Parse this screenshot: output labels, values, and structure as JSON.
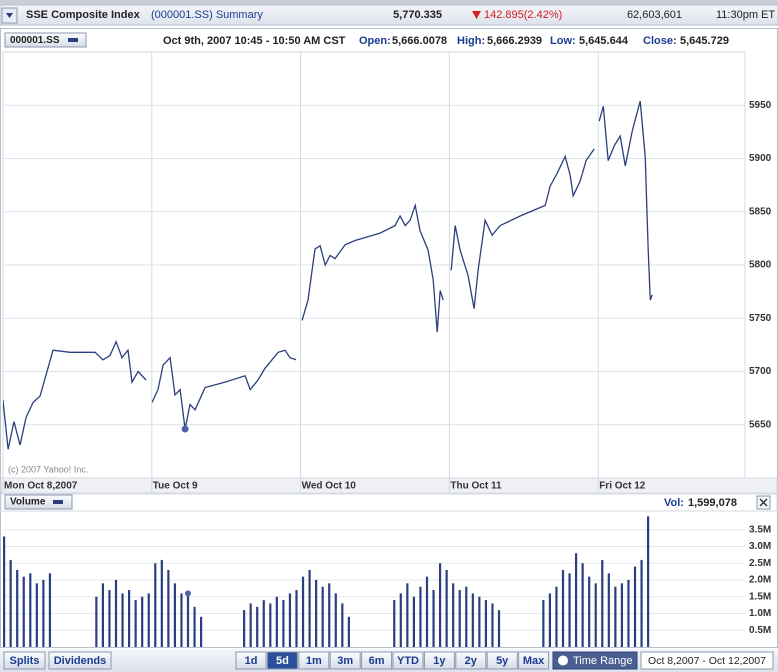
{
  "header": {
    "name": "SSE Composite Index",
    "symbol_link": "(000001.SS) Summary",
    "last_trade": "5,770.335",
    "change": "142.895(2.42%)",
    "volume": "62,603,601",
    "time": "11:30pm ET"
  },
  "info": {
    "symbol": "000001.SS",
    "period": "Oct 9th, 2007 10:45 - 10:50 AM CST",
    "open_label": "Open:",
    "open": "5,666.0078",
    "high_label": "High:",
    "high": "5,666.2939",
    "low_label": "Low:",
    "low": "5,645.644",
    "close_label": "Close:",
    "close": "5,645.729"
  },
  "chart_data": [
    {
      "type": "line",
      "color": "#2b3f7f",
      "grid": true,
      "annotation": "(c) 2007 Yahoo! Inc.",
      "xlim": [
        0,
        5
      ],
      "ylim": [
        5600,
        6000
      ],
      "xticks": [
        {
          "value": 0,
          "label": "Mon Oct 8,2007"
        },
        {
          "value": 1,
          "label": "Tue Oct 9"
        },
        {
          "value": 2,
          "label": "Wed Oct 10"
        },
        {
          "value": 3,
          "label": "Thu Oct 11"
        },
        {
          "value": 4,
          "label": "Fri Oct 12"
        }
      ],
      "yticks": [
        5650,
        5700,
        5750,
        5800,
        5850,
        5900,
        5950
      ],
      "x": [
        0,
        0.034,
        0.074,
        0.114,
        0.155,
        0.202,
        0.249,
        0.296,
        0.336,
        0.45,
        0.618,
        0.672,
        0.719,
        0.76,
        0.8,
        0.84,
        0.867,
        0.908,
        0.961,
        null,
        1.002,
        1.042,
        1.076,
        1.123,
        1.156,
        1.19,
        1.224,
        1.257,
        1.291,
        1.358,
        1.492,
        1.627,
        1.661,
        1.714,
        1.761,
        1.808,
        1.849,
        1.896,
        1.929,
        1.97,
        null,
        2.01,
        2.05,
        2.097,
        2.131,
        2.165,
        2.198,
        2.232,
        2.299,
        2.366,
        2.534,
        2.635,
        2.669,
        2.703,
        2.736,
        2.77,
        2.803,
        2.857,
        2.891,
        2.918,
        2.938,
        2.958,
        null,
        3.012,
        3.039,
        3.072,
        3.126,
        3.166,
        3.193,
        3.24,
        3.287,
        3.341,
        3.476,
        3.644,
        3.677,
        3.724,
        3.778,
        3.812,
        3.832,
        3.879,
        3.919,
        3.973,
        null,
        4.007,
        4.034,
        4.067,
        4.108,
        4.148,
        4.182,
        4.229,
        4.282,
        4.316,
        4.336,
        4.35,
        4.363
      ],
      "values": [
        5673,
        5627,
        5653,
        5631,
        5657,
        5671,
        5677,
        5700,
        5720,
        5718,
        5718,
        5711,
        5715,
        5728,
        5713,
        5720,
        5690,
        5700,
        5692,
        null,
        5671,
        5683,
        5706,
        5713,
        5678,
        5683,
        5646,
        5669,
        5664,
        5685,
        5690,
        5696,
        5683,
        5692,
        5703,
        5711,
        5718,
        5720,
        5713,
        5711,
        null,
        5748,
        5767,
        5815,
        5818,
        5800,
        5809,
        5806,
        5819,
        5823,
        5830,
        5837,
        5846,
        5837,
        5842,
        5856,
        5832,
        5814,
        5786,
        5737,
        5776,
        5767,
        null,
        5795,
        5837,
        5814,
        5790,
        5759,
        5795,
        5842,
        5828,
        5837,
        5846,
        5856,
        5874,
        5886,
        5902,
        5884,
        5865,
        5879,
        5898,
        5909,
        null,
        5935,
        5949,
        5898,
        5912,
        5921,
        5893,
        5926,
        5954,
        5902,
        5814,
        5767,
        5772
      ]
    },
    {
      "type": "bar",
      "title": "Volume",
      "color": "#2b3f7f",
      "grid": true,
      "vol_label": "Vol:",
      "vol_value": "1,599,078",
      "xlim": [
        0,
        5
      ],
      "ylim": [
        0,
        4
      ],
      "yticks": [
        {
          "value": 0.5,
          "label": "0.5M"
        },
        {
          "value": 1,
          "label": "1.0M"
        },
        {
          "value": 1.5,
          "label": "1.5M"
        },
        {
          "value": 2,
          "label": "2.0M"
        },
        {
          "value": 2.5,
          "label": "2.5M"
        },
        {
          "value": 3,
          "label": "3.0M"
        },
        {
          "value": 3.5,
          "label": "3.5M"
        }
      ],
      "x": [
        0,
        0.044,
        0.088,
        0.132,
        0.176,
        0.22,
        0.264,
        0.308,
        0.62,
        0.664,
        0.708,
        0.752,
        0.796,
        0.84,
        0.884,
        0.928,
        0.972,
        1.016,
        1.06,
        1.104,
        1.148,
        1.192,
        1.236,
        1.28,
        1.324,
        1.613,
        1.657,
        1.701,
        1.745,
        1.789,
        1.833,
        1.877,
        1.921,
        1.965,
        2.009,
        2.053,
        2.097,
        2.141,
        2.185,
        2.229,
        2.273,
        2.317,
        2.622,
        2.666,
        2.71,
        2.754,
        2.798,
        2.842,
        2.886,
        2.93,
        2.974,
        3.018,
        3.062,
        3.106,
        3.15,
        3.194,
        3.238,
        3.282,
        3.326,
        3.624,
        3.668,
        3.712,
        3.756,
        3.8,
        3.844,
        3.888,
        3.932,
        3.976,
        4.02,
        4.064,
        4.108,
        4.152,
        4.196,
        4.24,
        4.284,
        4.328
      ],
      "values": [
        3.3,
        2.6,
        2.3,
        2.1,
        2.2,
        1.9,
        2.0,
        2.2,
        1.5,
        1.9,
        1.7,
        2.0,
        1.6,
        1.7,
        1.4,
        1.5,
        1.6,
        2.5,
        2.6,
        2.3,
        1.9,
        1.6,
        1.6,
        1.2,
        0.9,
        1.1,
        1.3,
        1.2,
        1.4,
        1.3,
        1.5,
        1.4,
        1.6,
        1.7,
        2.1,
        2.3,
        2.0,
        1.8,
        1.9,
        1.6,
        1.3,
        0.9,
        1.4,
        1.6,
        1.9,
        1.5,
        1.8,
        2.1,
        1.7,
        2.5,
        2.3,
        1.9,
        1.7,
        1.8,
        1.6,
        1.5,
        1.4,
        1.3,
        1.1,
        1.4,
        1.6,
        1.8,
        2.3,
        2.2,
        2.8,
        2.5,
        2.1,
        1.9,
        2.6,
        2.2,
        1.8,
        1.9,
        2.0,
        2.4,
        2.6,
        3.9
      ]
    }
  ],
  "toolbar": {
    "splits": "Splits",
    "dividends": "Dividends",
    "ranges": [
      "1d",
      "5d",
      "1m",
      "3m",
      "6m",
      "YTD",
      "1y",
      "2y",
      "5y",
      "Max"
    ],
    "time_range": "Time Range",
    "date_range": "Oct 8,2007 - Oct 12,2007"
  }
}
